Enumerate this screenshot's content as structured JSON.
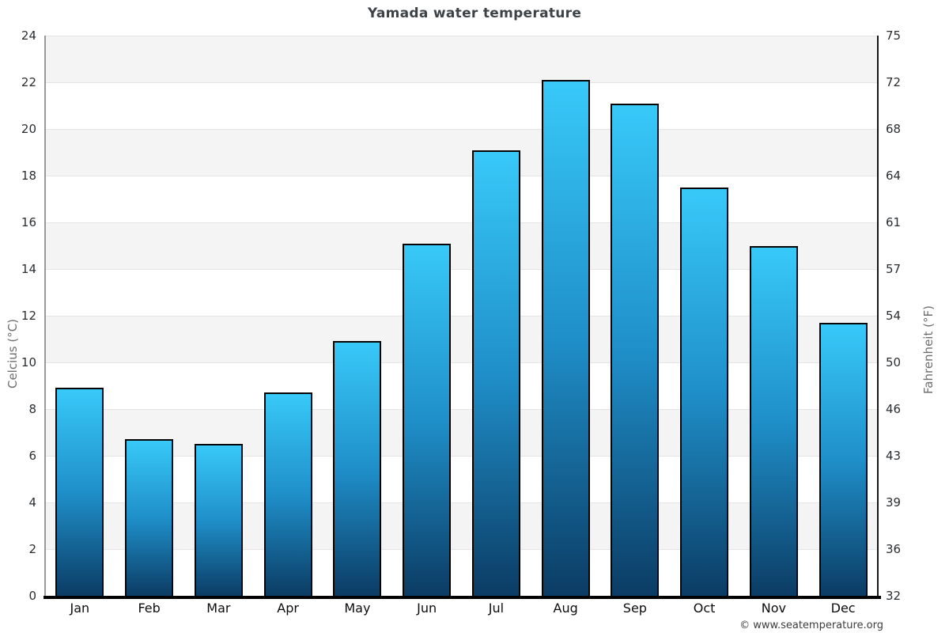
{
  "title": "Yamada water temperature",
  "chart_data": {
    "type": "bar",
    "title": "Yamada water temperature",
    "categories": [
      "Jan",
      "Feb",
      "Mar",
      "Apr",
      "May",
      "Jun",
      "Jul",
      "Aug",
      "Sep",
      "Oct",
      "Nov",
      "Dec"
    ],
    "values": [
      8.9,
      6.7,
      6.5,
      8.7,
      10.9,
      15.1,
      19.1,
      22.1,
      21.1,
      17.5,
      15.0,
      11.7
    ],
    "ylabel_left": "Celcius (°C)",
    "ylabel_right": "Fahrenheit (°F)",
    "ylim": [
      0,
      24
    ],
    "celsius_ticks": [
      "24",
      "22",
      "20",
      "18",
      "16",
      "14",
      "12",
      "10",
      "8",
      "6",
      "4",
      "2",
      "0"
    ],
    "fahrenheit_ticks": [
      "75",
      "72",
      "68",
      "64",
      "61",
      "57",
      "54",
      "50",
      "46",
      "43",
      "39",
      "36",
      "32"
    ],
    "grid": "alternating horizontal bands every 2°C",
    "legend": "none",
    "colors": {
      "bar_gradient_top": "#38c9f9",
      "bar_gradient_mid": "#1f8fc9",
      "bar_gradient_bottom": "#0b3c64",
      "bar_border": "#050505",
      "band_gray": "#f4f4f4",
      "band_white": "#ffffff"
    }
  },
  "footer": {
    "copyright": "© www.seatemperature.org"
  }
}
